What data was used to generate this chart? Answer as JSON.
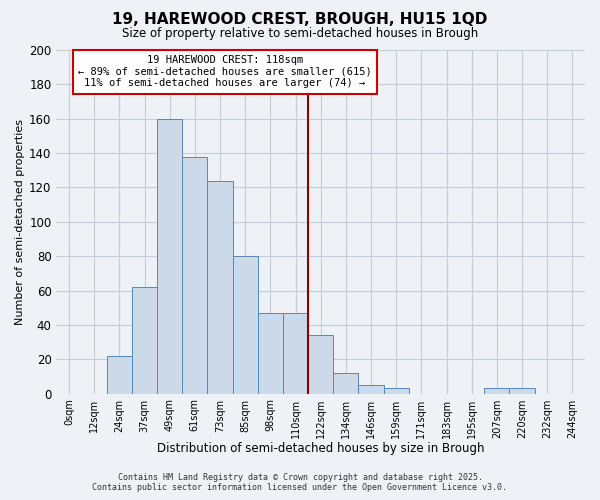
{
  "title": "19, HAREWOOD CREST, BROUGH, HU15 1QD",
  "subtitle": "Size of property relative to semi-detached houses in Brough",
  "xlabel": "Distribution of semi-detached houses by size in Brough",
  "ylabel": "Number of semi-detached properties",
  "bar_labels": [
    "0sqm",
    "12sqm",
    "24sqm",
    "37sqm",
    "49sqm",
    "61sqm",
    "73sqm",
    "85sqm",
    "98sqm",
    "110sqm",
    "122sqm",
    "134sqm",
    "146sqm",
    "159sqm",
    "171sqm",
    "183sqm",
    "195sqm",
    "207sqm",
    "220sqm",
    "232sqm",
    "244sqm"
  ],
  "bar_values": [
    0,
    0,
    22,
    62,
    160,
    138,
    124,
    80,
    47,
    47,
    34,
    12,
    5,
    3,
    0,
    0,
    0,
    3,
    3,
    0,
    0
  ],
  "bar_color": "#ccd9e8",
  "bar_edge_color": "#5588bb",
  "grid_color": "#c5cdd8",
  "background_color": "#eef2f7",
  "ylim": [
    0,
    200
  ],
  "yticks": [
    0,
    20,
    40,
    60,
    80,
    100,
    120,
    140,
    160,
    180,
    200
  ],
  "property_line_color": "#8b0000",
  "annotation_title": "19 HAREWOOD CREST: 118sqm",
  "annotation_line1": "← 89% of semi-detached houses are smaller (615)",
  "annotation_line2": "11% of semi-detached houses are larger (74) →",
  "annotation_box_color": "#ffffff",
  "annotation_box_edge": "#cc0000",
  "footer_line1": "Contains HM Land Registry data © Crown copyright and database right 2025.",
  "footer_line2": "Contains public sector information licensed under the Open Government Licence v3.0."
}
